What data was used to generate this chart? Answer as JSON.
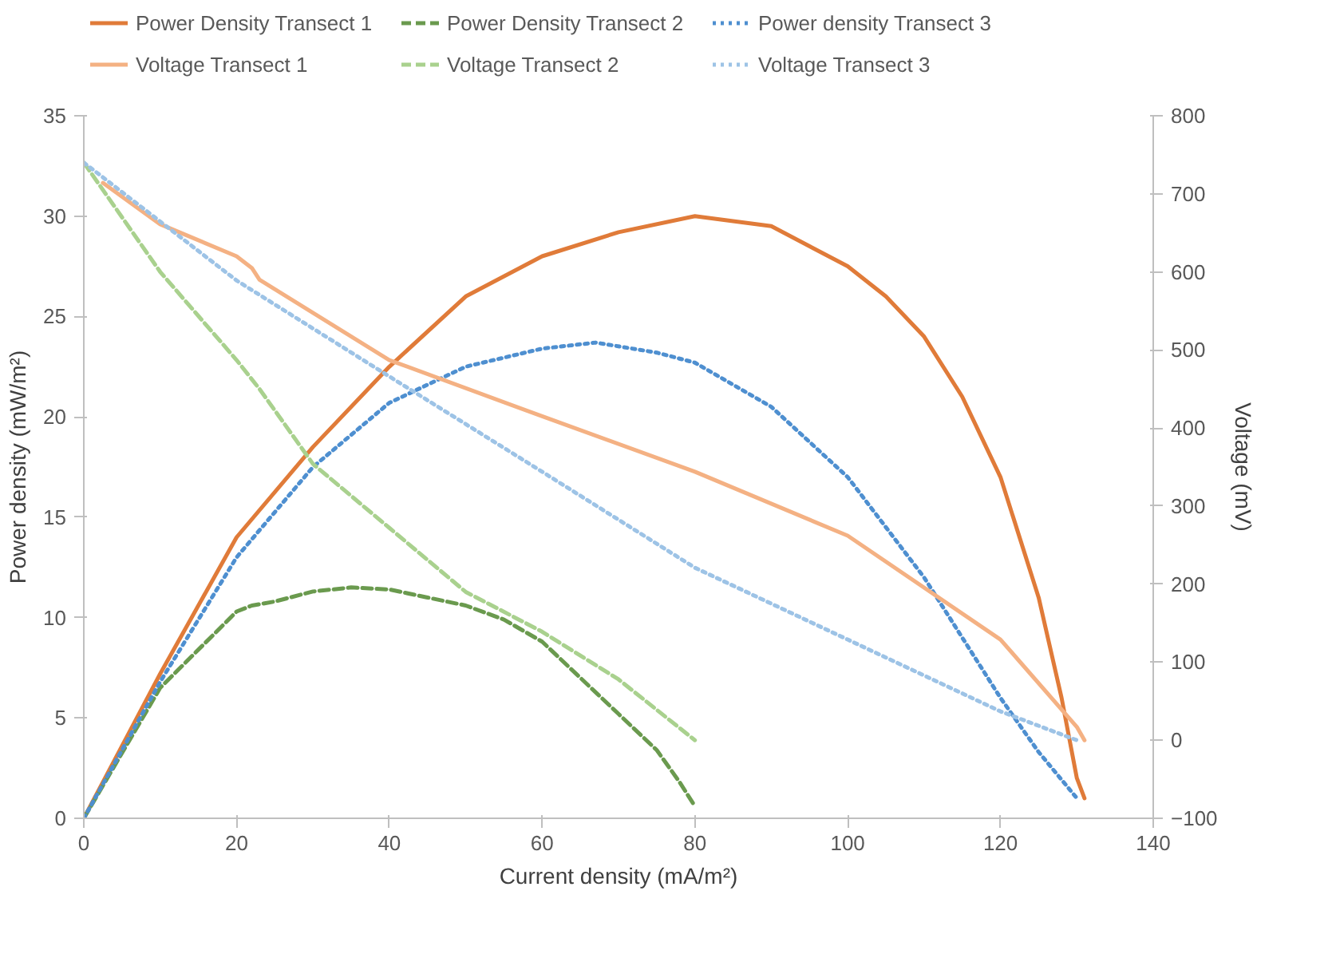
{
  "chart_data": {
    "type": "line",
    "xlabel": "Current density (mA/m²)",
    "ylabel": "Power density (mW/m²)",
    "y2label": "Voltage (mV)",
    "xlim": [
      0,
      140
    ],
    "xticks": [
      0,
      20,
      40,
      60,
      80,
      100,
      120,
      140
    ],
    "ylim": [
      0,
      35
    ],
    "yticks": [
      0,
      5,
      10,
      15,
      20,
      25,
      30,
      35
    ],
    "y2lim": [
      -100,
      800
    ],
    "y2ticks": [
      -100,
      0,
      100,
      200,
      300,
      400,
      500,
      600,
      700,
      800
    ],
    "grid": false,
    "legend": "top",
    "marker": "none",
    "series": [
      {
        "name": "Power Density Transect 1",
        "color": "#e07b39",
        "line_style": "solid",
        "x": [
          0,
          10,
          20,
          30,
          40,
          50,
          60,
          70,
          80,
          90,
          100,
          105,
          110,
          115,
          120,
          125,
          128,
          130,
          131
        ],
        "values": [
          0,
          7.2,
          14,
          18.5,
          22.5,
          26,
          28,
          29.2,
          30,
          29.5,
          27.5,
          26,
          24,
          21,
          17,
          11,
          6,
          2,
          1
        ]
      },
      {
        "name": "Power Density Transect 2",
        "color": "#6a9a4e",
        "line_style": "dashed",
        "x": [
          0,
          10,
          20,
          22,
          25,
          30,
          35,
          40,
          45,
          50,
          55,
          60,
          65,
          70,
          75,
          78,
          80
        ],
        "values": [
          0,
          6.5,
          10.3,
          10.6,
          10.8,
          11.3,
          11.5,
          11.4,
          11,
          10.6,
          9.9,
          8.8,
          7,
          5.2,
          3.4,
          1.8,
          0.6
        ]
      },
      {
        "name": "Power density Transect 3",
        "color": "#4e8fd0",
        "line_style": "dotted",
        "x": [
          0,
          10,
          20,
          30,
          40,
          50,
          60,
          67,
          75,
          80,
          90,
          100,
          110,
          120,
          125,
          130
        ],
        "values": [
          0,
          6.8,
          13,
          17.5,
          20.7,
          22.5,
          23.4,
          23.7,
          23.2,
          22.7,
          20.5,
          17,
          12,
          6,
          3.3,
          1
        ]
      },
      {
        "name": "Voltage Transect 1",
        "color": "#f4b183",
        "line_style": "solid",
        "axis": "y2",
        "x": [
          2.5,
          10,
          20,
          22,
          23,
          40,
          60,
          80,
          100,
          120,
          130,
          131
        ],
        "values": [
          714,
          661,
          620,
          605,
          590,
          487,
          415,
          344,
          262,
          129,
          17,
          0
        ]
      },
      {
        "name": "Voltage Transect 2",
        "color": "#a9d18e",
        "line_style": "dashed",
        "axis": "y2",
        "x": [
          0,
          10,
          20,
          23,
          30,
          40,
          50,
          60,
          70,
          80
        ],
        "values": [
          740,
          600,
          487,
          450,
          354,
          272,
          190,
          139,
          78,
          0
        ]
      },
      {
        "name": "Voltage Transect 3",
        "color": "#9dc3e6",
        "line_style": "dotted",
        "axis": "y2",
        "x": [
          0,
          20,
          40,
          60,
          80,
          100,
          120,
          130
        ],
        "values": [
          740,
          589,
          466,
          344,
          221,
          129,
          37,
          0
        ]
      }
    ]
  }
}
